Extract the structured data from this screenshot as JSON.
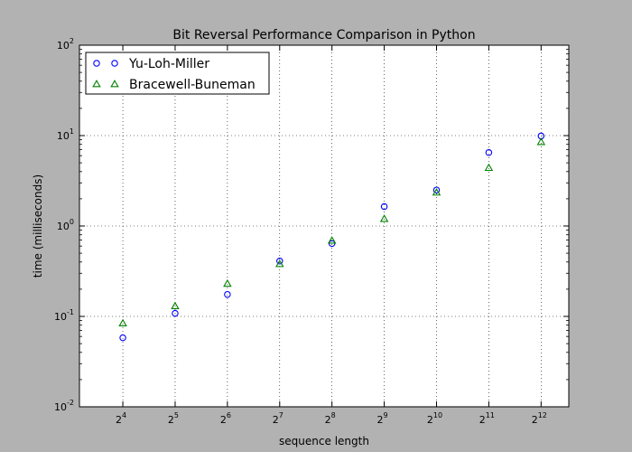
{
  "chart_data": {
    "type": "scatter",
    "title": "Bit Reversal Performance Comparison in Python",
    "xlabel": "sequence length",
    "ylabel": "time (milliseconds)",
    "xscale": "log2",
    "yscale": "log10",
    "xlim_exponent": [
      3.17,
      12.53
    ],
    "ylim": [
      0.01,
      100
    ],
    "grid": true,
    "legend_position": "top-left",
    "x_ticks": [
      {
        "base": "2",
        "exp": "4",
        "value": 16
      },
      {
        "base": "2",
        "exp": "5",
        "value": 32
      },
      {
        "base": "2",
        "exp": "6",
        "value": 64
      },
      {
        "base": "2",
        "exp": "7",
        "value": 128
      },
      {
        "base": "2",
        "exp": "8",
        "value": 256
      },
      {
        "base": "2",
        "exp": "9",
        "value": 512
      },
      {
        "base": "2",
        "exp": "10",
        "value": 1024
      },
      {
        "base": "2",
        "exp": "11",
        "value": 2048
      },
      {
        "base": "2",
        "exp": "12",
        "value": 4096
      }
    ],
    "y_ticks": [
      {
        "base": "10",
        "exp": "-2",
        "value": 0.01
      },
      {
        "base": "10",
        "exp": "-1",
        "value": 0.1
      },
      {
        "base": "10",
        "exp": "0",
        "value": 1
      },
      {
        "base": "10",
        "exp": "1",
        "value": 10
      },
      {
        "base": "10",
        "exp": "2",
        "value": 100
      }
    ],
    "x": [
      16,
      32,
      64,
      128,
      256,
      512,
      1024,
      2048,
      4096
    ],
    "series": [
      {
        "name": "Yu-Loh-Miller",
        "marker": "circle",
        "color": "#0000ff",
        "values": [
          0.058,
          0.108,
          0.175,
          0.41,
          0.64,
          1.64,
          2.5,
          6.5,
          9.9
        ]
      },
      {
        "name": "Bracewell-Buneman",
        "marker": "triangle",
        "color": "#008000",
        "values": [
          0.084,
          0.13,
          0.23,
          0.38,
          0.69,
          1.2,
          2.35,
          4.4,
          8.5
        ]
      }
    ]
  }
}
